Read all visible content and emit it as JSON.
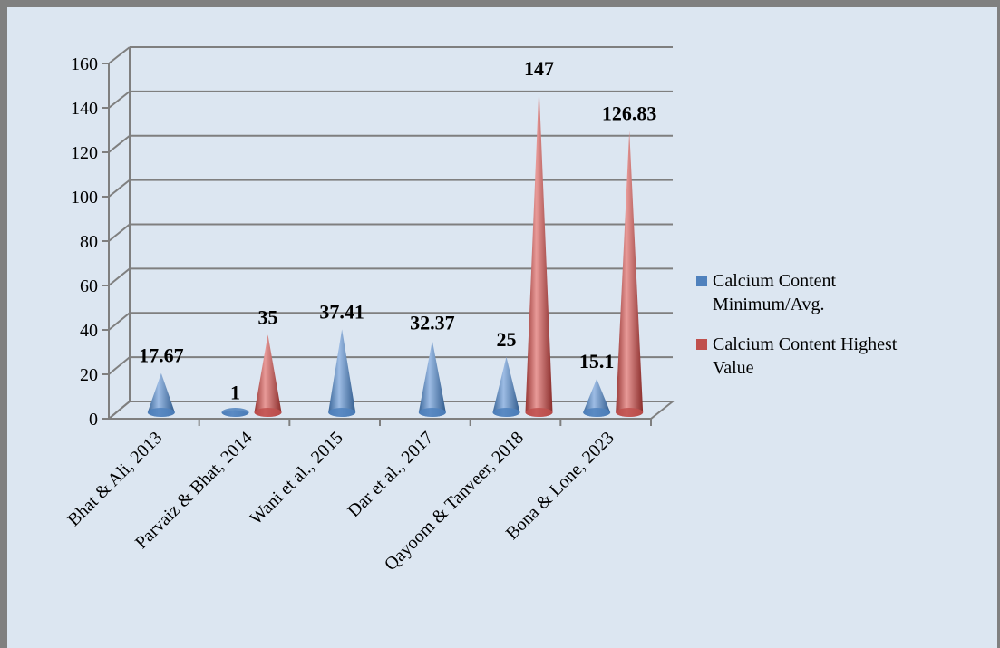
{
  "chart_data": {
    "type": "bar",
    "style": "3d-cone",
    "title": "",
    "xlabel": "",
    "ylabel": "",
    "ylim": [
      0,
      160
    ],
    "yticks": [
      0,
      20,
      40,
      60,
      80,
      100,
      120,
      140,
      160
    ],
    "grid": true,
    "legend_position": "right",
    "categories": [
      "Bhat & Ali, 2013",
      "Parvaiz & Bhat, 2014",
      "Wani et al., 2015",
      "Dar et al., 2017",
      "Qayoom & Tanveer, 2018",
      "Bona & Lone, 2023"
    ],
    "series": [
      {
        "name": "Calcium Content Minimum/Avg.",
        "legend_lines": [
          "Calcium Content",
          "Minimum/Avg."
        ],
        "color": "#4f81bd",
        "values": [
          17.67,
          1,
          37.41,
          32.37,
          25,
          15.1
        ],
        "labels": [
          "17.67",
          "1",
          "37.41",
          "32.37",
          "25",
          "15.1"
        ]
      },
      {
        "name": "Calcium Content Highest Value",
        "legend_lines": [
          "Calcium Content Highest",
          "Value"
        ],
        "color": "#c0504d",
        "values": [
          null,
          35,
          null,
          null,
          147,
          126.83
        ],
        "labels": [
          null,
          "35",
          null,
          null,
          "147",
          "126.83"
        ]
      }
    ]
  }
}
